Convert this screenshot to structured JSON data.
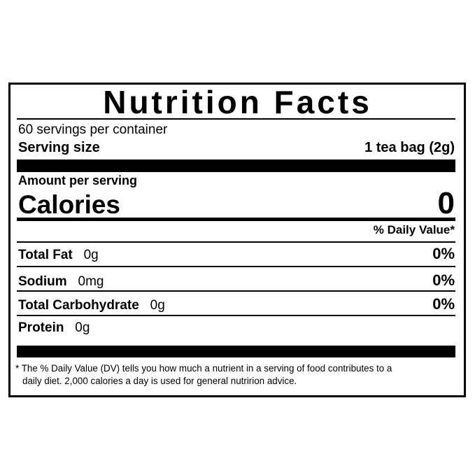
{
  "title": "Nutrition Facts",
  "servings_per_container": "60 servings per container",
  "serving_size": {
    "label": "Serving size",
    "value": "1 tea bag (2g)"
  },
  "amount_per_serving": "Amount per serving",
  "calories": {
    "label": "Calories",
    "value": "0"
  },
  "daily_value_header": "% Daily Value*",
  "nutrients": [
    {
      "label": "Total Fat",
      "amount": "0g",
      "dv": "0%"
    },
    {
      "label": "Sodium",
      "amount": "0mg",
      "dv": "0%"
    },
    {
      "label": "Total Carbohydrate",
      "amount": "0g",
      "dv": "0%"
    },
    {
      "label": "Protein",
      "amount": "0g",
      "dv": ""
    }
  ],
  "footnote_line1": "* The % Daily Value (DV) tells you how much a nutrient in a serving of food contributes to a",
  "footnote_line2": "daily diet. 2,000 calories a day is used for general nutririon advice."
}
